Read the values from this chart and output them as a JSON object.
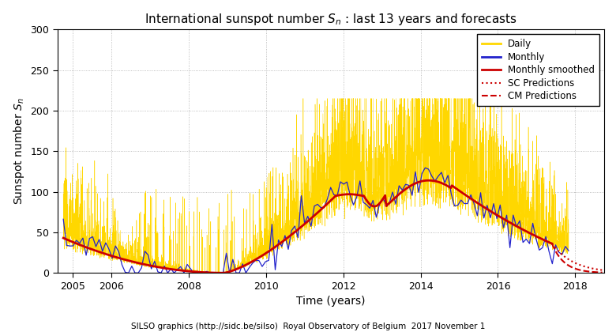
{
  "title": "International sunspot number $S_n$ : last 13 years and forecasts",
  "xlabel": "Time (years)",
  "ylabel": "Sunspot number $S_n$",
  "footer": "SILSO graphics (http://sidc.be/silso)  Royal Observatory of Belgium  2017 November 1",
  "ylim": [
    0,
    300
  ],
  "yticks": [
    0,
    50,
    100,
    150,
    200,
    250,
    300
  ],
  "xticks": [
    2005,
    2006,
    2008,
    2010,
    2012,
    2014,
    2016,
    2018
  ],
  "xlim": [
    2004.6,
    2018.75
  ],
  "bg_color": "#FFFFFF",
  "grid_color": "#999999",
  "seed": 12345,
  "t_start": 2004.75,
  "t_end_data": 2017.83,
  "t_end_smoothed": 2017.4,
  "t_forecast_start": 2017.4,
  "t_forecast_end": 2018.7,
  "legend_loc": "upper right"
}
